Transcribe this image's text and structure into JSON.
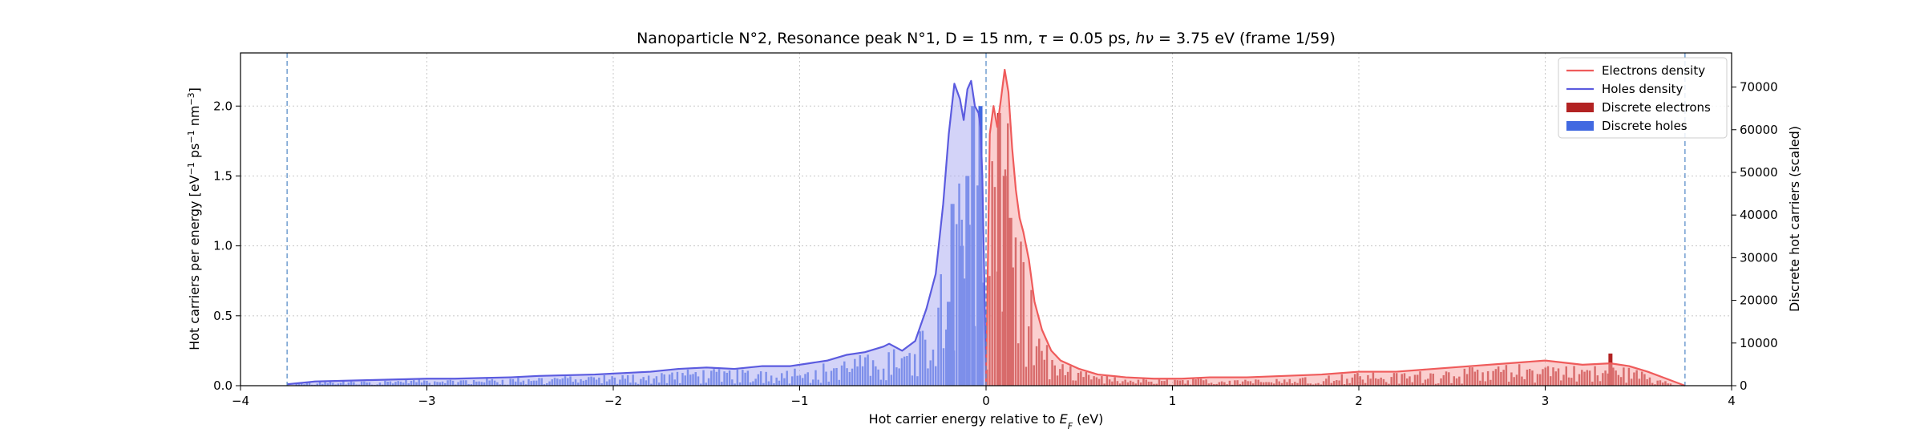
{
  "chart_data": {
    "type": "area",
    "title_text": "Nanoparticle N°2, Resonance peak N°1, D = 15 nm, τ = 0.05 ps, hν = 3.75 eV   (frame 1/59)",
    "xlabel": "Hot carrier energy relative to E_F (eV)",
    "ylabel": "Hot carriers per energy [eV⁻¹ ps⁻¹ nm⁻³]",
    "ylabel_right": "Discrete hot carriers (scaled)",
    "xlim": [
      -4,
      4
    ],
    "ylim_left": [
      0,
      2.38
    ],
    "ylim_right": [
      0,
      78000
    ],
    "x_ticks": [
      -4,
      -3,
      -2,
      -1,
      0,
      1,
      2,
      3,
      4
    ],
    "x_tick_labels": [
      "−4",
      "−3",
      "−2",
      "−1",
      "0",
      "1",
      "2",
      "3",
      "4"
    ],
    "y_ticks_left": [
      0.0,
      0.5,
      1.0,
      1.5,
      2.0
    ],
    "y_tick_labels_left": [
      "0.0",
      "0.5",
      "1.0",
      "1.5",
      "2.0"
    ],
    "y_ticks_right": [
      0,
      10000,
      20000,
      30000,
      40000,
      50000,
      60000,
      70000
    ],
    "y_tick_labels_right": [
      "0",
      "10000",
      "20000",
      "30000",
      "40000",
      "50000",
      "60000",
      "70000"
    ],
    "grid": true,
    "vlines_x": [
      -3.75,
      0,
      3.75
    ],
    "legend_position": "top-right",
    "legend": [
      {
        "label": "Electrons density",
        "kind": "line",
        "color": "#ef5b5b"
      },
      {
        "label": "Holes density",
        "kind": "line",
        "color": "#5b5bdf"
      },
      {
        "label": "Discrete electrons",
        "kind": "box",
        "color": "#b22222"
      },
      {
        "label": "Discrete holes",
        "kind": "box",
        "color": "#4169e1"
      }
    ],
    "colors": {
      "electrons_line": "#ef5b5b",
      "electrons_fill": "#f7a8a8",
      "holes_line": "#5b5bdf",
      "holes_fill": "#aeaef3",
      "discrete_electrons": "#b22222",
      "discrete_holes": "#4169e1",
      "vline": "#5b8ec9",
      "grid": "#c8c8c8"
    },
    "series": [
      {
        "name": "Holes density",
        "x": [
          -3.75,
          -3.6,
          -3.45,
          -3.3,
          -3.15,
          -3.0,
          -2.85,
          -2.7,
          -2.55,
          -2.4,
          -2.25,
          -2.1,
          -1.95,
          -1.8,
          -1.65,
          -1.5,
          -1.35,
          -1.2,
          -1.05,
          -0.95,
          -0.85,
          -0.75,
          -0.65,
          -0.55,
          -0.52,
          -0.45,
          -0.38,
          -0.32,
          -0.27,
          -0.23,
          -0.2,
          -0.17,
          -0.14,
          -0.12,
          -0.1,
          -0.08,
          -0.06,
          -0.04,
          -0.03,
          -0.02,
          -0.01,
          0.0
        ],
        "y": [
          0.01,
          0.03,
          0.035,
          0.04,
          0.045,
          0.05,
          0.05,
          0.055,
          0.06,
          0.07,
          0.075,
          0.08,
          0.09,
          0.1,
          0.12,
          0.13,
          0.12,
          0.14,
          0.14,
          0.16,
          0.18,
          0.22,
          0.24,
          0.28,
          0.3,
          0.25,
          0.32,
          0.55,
          0.8,
          1.3,
          1.8,
          2.16,
          2.05,
          1.9,
          2.12,
          2.18,
          2.0,
          1.95,
          1.85,
          1.5,
          0.8,
          0.0
        ]
      },
      {
        "name": "Electrons density",
        "x": [
          0.0,
          0.02,
          0.04,
          0.06,
          0.08,
          0.1,
          0.12,
          0.14,
          0.16,
          0.18,
          0.2,
          0.23,
          0.26,
          0.3,
          0.35,
          0.4,
          0.5,
          0.6,
          0.75,
          0.9,
          1.05,
          1.2,
          1.4,
          1.6,
          1.8,
          2.0,
          2.2,
          2.4,
          2.6,
          2.8,
          3.0,
          3.2,
          3.35,
          3.45,
          3.55,
          3.65,
          3.75
        ],
        "y": [
          0.0,
          1.8,
          2.0,
          1.85,
          2.05,
          2.26,
          2.1,
          1.7,
          1.4,
          1.2,
          1.1,
          0.9,
          0.6,
          0.4,
          0.25,
          0.18,
          0.12,
          0.08,
          0.06,
          0.05,
          0.05,
          0.06,
          0.06,
          0.07,
          0.08,
          0.1,
          0.1,
          0.12,
          0.14,
          0.16,
          0.18,
          0.15,
          0.16,
          0.14,
          0.1,
          0.05,
          0.0
        ]
      }
    ],
    "discrete_peaks": [
      {
        "x": -0.2,
        "y": 0.6
      },
      {
        "x": -0.18,
        "y": 1.3
      },
      {
        "x": -0.13,
        "y": 1.0
      },
      {
        "x": -0.1,
        "y": 1.5
      },
      {
        "x": -0.07,
        "y": 2.0
      },
      {
        "x": -0.03,
        "y": 2.0
      },
      {
        "x": 0.07,
        "y": 1.95
      },
      {
        "x": 0.1,
        "y": 1.5
      },
      {
        "x": 0.13,
        "y": 1.2
      },
      {
        "x": 3.35,
        "y": 0.23
      }
    ]
  }
}
